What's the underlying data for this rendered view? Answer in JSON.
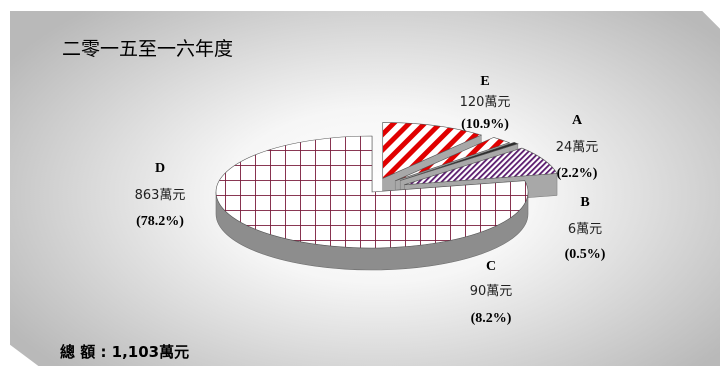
{
  "chart_data": {
    "type": "pie",
    "title": "二零一五至一六年度",
    "total_label": "總 額 : 1,103萬元",
    "slices": [
      {
        "name": "A",
        "value_label": "24萬元",
        "percent_label": "(2.2%)",
        "value": 24,
        "percent": 2.2,
        "color": "#e00000",
        "pattern": "wide-diagonal"
      },
      {
        "name": "B",
        "value_label": "6萬元",
        "percent_label": "(0.5%)",
        "value": 6,
        "percent": 0.5,
        "color": "#2a2a2a",
        "pattern": "solid"
      },
      {
        "name": "C",
        "value_label": "90萬元",
        "percent_label": "(8.2%)",
        "value": 90,
        "percent": 8.2,
        "color": "#5a1a6e",
        "pattern": "fine-diagonal"
      },
      {
        "name": "D",
        "value_label": "863萬元",
        "percent_label": "(78.2%)",
        "value": 863,
        "percent": 78.2,
        "color": "#7a1c3c",
        "pattern": "grid"
      },
      {
        "name": "E",
        "value_label": "120萬元",
        "percent_label": "(10.9%)",
        "value": 120,
        "percent": 10.9,
        "color": "#e00000",
        "pattern": "wide-diagonal"
      }
    ]
  }
}
